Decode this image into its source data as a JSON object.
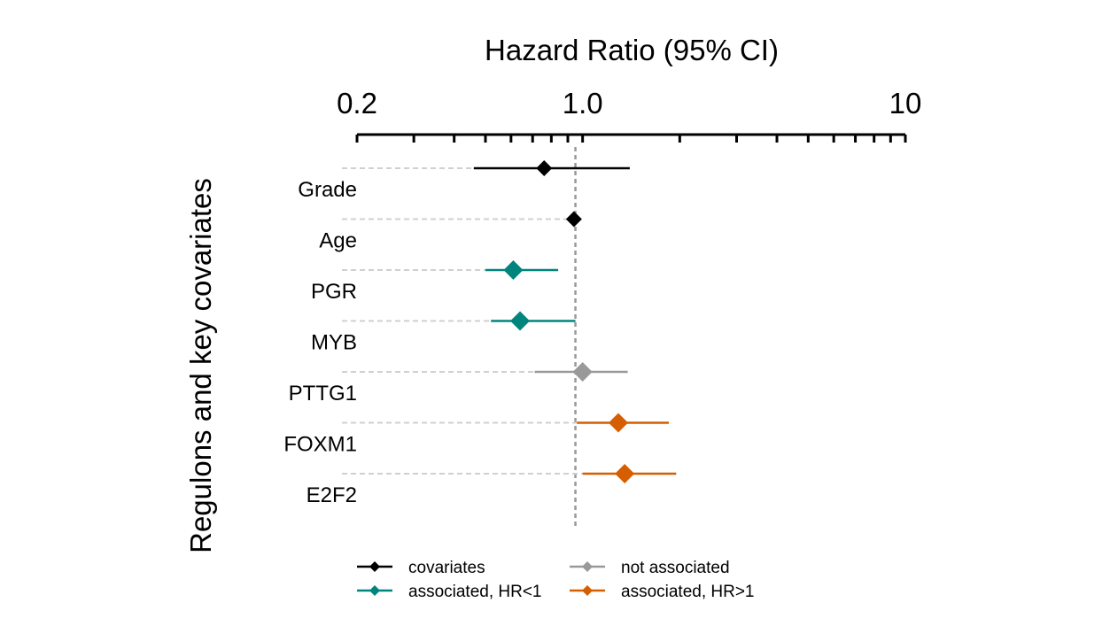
{
  "chart_data": {
    "type": "forest",
    "title": "Hazard Ratio (95% CI)",
    "ylabel": "Regulons and key covariates",
    "x_scale": "log",
    "xlim": [
      0.2,
      10
    ],
    "x_major_ticks": [
      0.2,
      1.0,
      10
    ],
    "x_major_tick_labels": [
      "0.2",
      "1.0",
      "10"
    ],
    "x_minor_ticks": [
      0.3,
      0.4,
      0.5,
      0.6,
      0.7,
      0.8,
      0.9,
      2,
      3,
      4,
      5,
      6,
      7,
      8,
      9
    ],
    "reference_line": 0.95,
    "grid": false,
    "rows": [
      {
        "label": "Grade",
        "hr": 0.76,
        "lower": 0.46,
        "upper": 1.4,
        "group": "covariates"
      },
      {
        "label": "Age",
        "hr": 0.94,
        "lower": 0.94,
        "upper": 0.94,
        "group": "covariates"
      },
      {
        "label": "PGR",
        "hr": 0.61,
        "lower": 0.5,
        "upper": 0.84,
        "group": "associated, HR<1"
      },
      {
        "label": "MYB",
        "hr": 0.64,
        "lower": 0.52,
        "upper": 0.95,
        "group": "associated, HR<1"
      },
      {
        "label": "PTTG1",
        "hr": 1.0,
        "lower": 0.71,
        "upper": 1.38,
        "group": "not associated"
      },
      {
        "label": "FOXM1",
        "hr": 1.29,
        "lower": 0.96,
        "upper": 1.85,
        "group": "associated, HR>1"
      },
      {
        "label": "E2F2",
        "hr": 1.35,
        "lower": 1.0,
        "upper": 1.95,
        "group": "associated, HR>1"
      }
    ],
    "legend": {
      "placement": "bottom",
      "entries": [
        {
          "name": "covariates",
          "color": "#000000"
        },
        {
          "name": "not associated",
          "color": "#999999"
        },
        {
          "name": "associated, HR<1",
          "color": "#00857d"
        },
        {
          "name": "associated, HR>1",
          "color": "#d55e00"
        }
      ]
    }
  }
}
